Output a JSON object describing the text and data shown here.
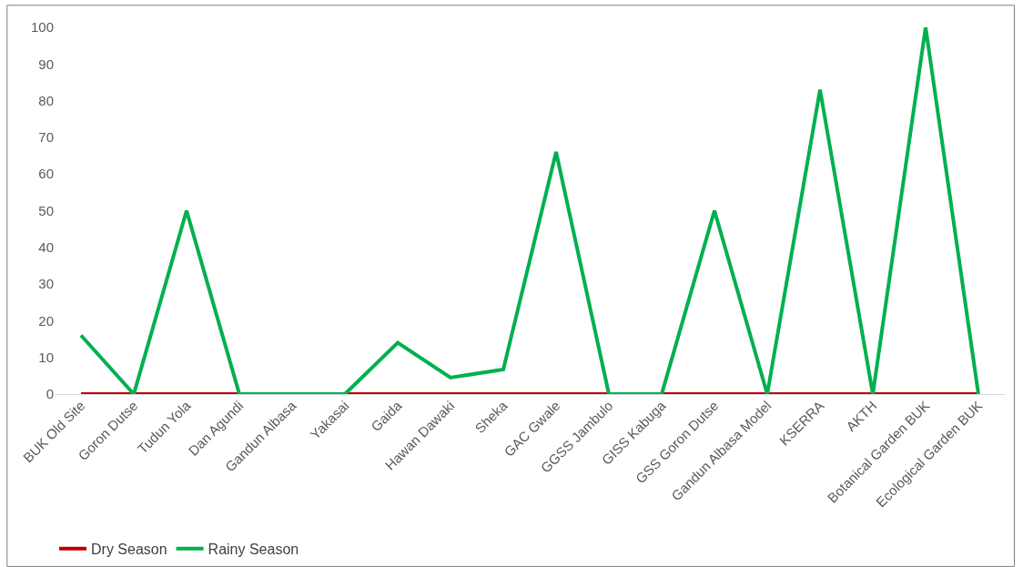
{
  "chart_data": {
    "type": "line",
    "categories": [
      "BUK Old Site",
      "Goron Dutse",
      "Tudun Yola",
      "Dan Agundi",
      "Gandun Albasa",
      "Yakasai",
      "Gaida",
      "Hawan Dawaki",
      "Sheka",
      "GAC Gwale",
      "GGSS Jambulo",
      "GISS Kabuga",
      "GSS Goron Dutse",
      "Gandun Albasa Model",
      "KSERRA",
      "AKTH",
      "Botanical Garden BUK",
      "Ecological Garden BUK"
    ],
    "series": [
      {
        "name": "Dry Season",
        "color": "#c00000",
        "values": [
          0,
          0,
          0,
          0,
          0,
          0,
          0,
          0,
          0,
          0,
          0,
          0,
          0,
          0,
          0,
          0,
          0,
          0
        ]
      },
      {
        "name": "Rainy Season",
        "color": "#00b050",
        "values": [
          16,
          0,
          50,
          0,
          0,
          0,
          14,
          4.5,
          6.7,
          66,
          0,
          0,
          50,
          0,
          83,
          0,
          100,
          0
        ]
      }
    ],
    "ylim": [
      0,
      100
    ],
    "yticks": [
      0,
      10,
      20,
      30,
      40,
      50,
      60,
      70,
      80,
      90,
      100
    ],
    "grid": false,
    "legend": "bottom left",
    "marker": "none",
    "line_style": "solid"
  }
}
